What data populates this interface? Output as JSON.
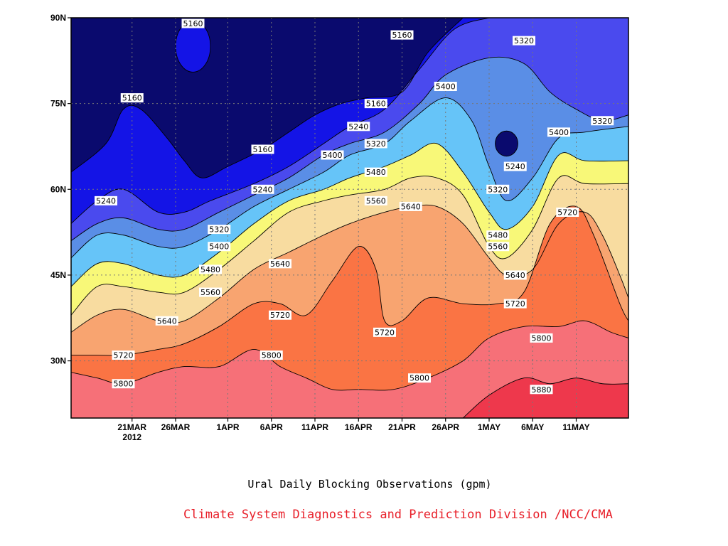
{
  "chart_data": {
    "type": "heatmap",
    "subtype": "filled-contour",
    "title": "Ural Daily Blocking Observations (gpm)",
    "credit": "Climate System Diagnostics and Prediction Division /NCC/CMA",
    "credit_color": "#e8202a",
    "xlabel": "",
    "ylabel": "",
    "x_axis": {
      "start": "2012-03-14",
      "end": "2012-05-17",
      "ticks": [
        {
          "date": "2012-03-21",
          "label": "21MAR",
          "sublabel": "2012"
        },
        {
          "date": "2012-03-26",
          "label": "26MAR"
        },
        {
          "date": "2012-04-01",
          "label": "1APR"
        },
        {
          "date": "2012-04-06",
          "label": "6APR"
        },
        {
          "date": "2012-04-11",
          "label": "11APR"
        },
        {
          "date": "2012-04-16",
          "label": "16APR"
        },
        {
          "date": "2012-04-21",
          "label": "21APR"
        },
        {
          "date": "2012-04-26",
          "label": "26APR"
        },
        {
          "date": "2012-05-01",
          "label": "1MAY"
        },
        {
          "date": "2012-05-06",
          "label": "6MAY"
        },
        {
          "date": "2012-05-11",
          "label": "11MAY"
        }
      ]
    },
    "y_axis": {
      "range": [
        20,
        90
      ],
      "unit": "degrees N",
      "ticks": [
        {
          "value": 30,
          "label": "30N"
        },
        {
          "value": 45,
          "label": "45N"
        },
        {
          "value": 60,
          "label": "60N"
        },
        {
          "value": 75,
          "label": "75N"
        },
        {
          "value": 90,
          "label": "90N"
        }
      ]
    },
    "grid": true,
    "grid_style": "dotted",
    "legend": "none",
    "contour_interval": 80,
    "levels": [
      {
        "value": 5160,
        "color": "#1414e6"
      },
      {
        "value": 5240,
        "color": "#4a4aee"
      },
      {
        "value": 5320,
        "color": "#5a8ee6"
      },
      {
        "value": 5400,
        "color": "#66c4f8"
      },
      {
        "value": 5480,
        "color": "#f8f878"
      },
      {
        "value": 5560,
        "color": "#f8dca0"
      },
      {
        "value": 5640,
        "color": "#f8a470"
      },
      {
        "value": 5720,
        "color": "#fa7444"
      },
      {
        "value": 5800,
        "color": "#f67078"
      },
      {
        "value": 5880,
        "color": "#ee384c"
      }
    ],
    "below_lowest_color": "#0a0a6e",
    "isolines": [
      {
        "value": 5160,
        "points": [
          [
            "2012-03-14",
            63
          ],
          [
            "2012-03-18",
            68
          ],
          [
            "2012-03-20",
            74
          ],
          [
            "2012-03-22",
            74
          ],
          [
            "2012-03-25",
            69
          ],
          [
            "2012-03-27",
            65
          ],
          [
            "2012-03-29",
            62
          ],
          [
            "2012-04-01",
            64
          ],
          [
            "2012-04-05",
            67
          ],
          [
            "2012-04-08",
            70
          ],
          [
            "2012-04-11",
            73
          ],
          [
            "2012-04-14",
            75
          ],
          [
            "2012-04-17",
            76
          ],
          [
            "2012-04-21",
            77
          ],
          [
            "2012-04-24",
            84
          ],
          [
            "2012-04-28",
            90
          ]
        ]
      },
      {
        "value": 5240,
        "points": [
          [
            "2012-03-14",
            54
          ],
          [
            "2012-03-17",
            58
          ],
          [
            "2012-03-20",
            60
          ],
          [
            "2012-03-24",
            56
          ],
          [
            "2012-03-27",
            56
          ],
          [
            "2012-03-30",
            58
          ],
          [
            "2012-04-04",
            61
          ],
          [
            "2012-04-08",
            64
          ],
          [
            "2012-04-12",
            68
          ],
          [
            "2012-04-15",
            71
          ],
          [
            "2012-04-19",
            74
          ],
          [
            "2012-04-23",
            81
          ],
          [
            "2012-04-27",
            88
          ],
          [
            "2012-05-01",
            90
          ]
        ]
      },
      {
        "value": 5320,
        "points": [
          [
            "2012-03-14",
            51
          ],
          [
            "2012-03-17",
            54
          ],
          [
            "2012-03-20",
            55
          ],
          [
            "2012-03-24",
            53
          ],
          [
            "2012-03-27",
            53
          ],
          [
            "2012-03-31",
            56
          ],
          [
            "2012-04-04",
            59
          ],
          [
            "2012-04-08",
            62
          ],
          [
            "2012-04-12",
            66
          ],
          [
            "2012-04-15",
            68
          ],
          [
            "2012-04-19",
            70
          ],
          [
            "2012-04-23",
            75
          ],
          [
            "2012-04-26",
            80
          ],
          [
            "2012-05-01",
            83
          ],
          [
            "2012-05-05",
            82
          ],
          [
            "2012-05-08",
            77
          ],
          [
            "2012-05-11",
            74
          ],
          [
            "2012-05-14",
            72
          ],
          [
            "2012-05-17",
            73
          ]
        ]
      },
      {
        "value": 5400,
        "points": [
          [
            "2012-03-14",
            48
          ],
          [
            "2012-03-17",
            52
          ],
          [
            "2012-03-20",
            52
          ],
          [
            "2012-03-24",
            50
          ],
          [
            "2012-03-27",
            50
          ],
          [
            "2012-03-31",
            53
          ],
          [
            "2012-04-04",
            57
          ],
          [
            "2012-04-08",
            60
          ],
          [
            "2012-04-12",
            63
          ],
          [
            "2012-04-15",
            66
          ],
          [
            "2012-04-19",
            68
          ],
          [
            "2012-04-22",
            72
          ],
          [
            "2012-04-26",
            76
          ],
          [
            "2012-04-29",
            72
          ],
          [
            "2012-05-01",
            64
          ],
          [
            "2012-05-03",
            58
          ],
          [
            "2012-05-06",
            62
          ],
          [
            "2012-05-09",
            69
          ],
          [
            "2012-05-12",
            70
          ],
          [
            "2012-05-17",
            71
          ]
        ]
      },
      {
        "value": 5480,
        "points": [
          [
            "2012-03-14",
            43
          ],
          [
            "2012-03-17",
            47
          ],
          [
            "2012-03-20",
            47
          ],
          [
            "2012-03-24",
            45
          ],
          [
            "2012-03-27",
            45
          ],
          [
            "2012-03-31",
            49
          ],
          [
            "2012-04-04",
            54
          ],
          [
            "2012-04-08",
            58
          ],
          [
            "2012-04-12",
            60
          ],
          [
            "2012-04-15",
            62
          ],
          [
            "2012-04-19",
            64
          ],
          [
            "2012-04-22",
            66
          ],
          [
            "2012-04-25",
            68
          ],
          [
            "2012-04-28",
            63
          ],
          [
            "2012-05-01",
            56
          ],
          [
            "2012-05-03",
            53
          ],
          [
            "2012-05-06",
            57
          ],
          [
            "2012-05-09",
            66
          ],
          [
            "2012-05-12",
            65
          ],
          [
            "2012-05-17",
            65
          ]
        ]
      },
      {
        "value": 5560,
        "points": [
          [
            "2012-03-14",
            38
          ],
          [
            "2012-03-17",
            43
          ],
          [
            "2012-03-20",
            43
          ],
          [
            "2012-03-24",
            42
          ],
          [
            "2012-03-27",
            42
          ],
          [
            "2012-03-31",
            46
          ],
          [
            "2012-04-04",
            51
          ],
          [
            "2012-04-08",
            56
          ],
          [
            "2012-04-12",
            58
          ],
          [
            "2012-04-15",
            59
          ],
          [
            "2012-04-19",
            60
          ],
          [
            "2012-04-22",
            62
          ],
          [
            "2012-04-25",
            62
          ],
          [
            "2012-04-28",
            59
          ],
          [
            "2012-05-01",
            50
          ],
          [
            "2012-05-03",
            48
          ],
          [
            "2012-05-06",
            53
          ],
          [
            "2012-05-09",
            62
          ],
          [
            "2012-05-12",
            61
          ],
          [
            "2012-05-17",
            61
          ]
        ]
      },
      {
        "value": 5640,
        "points": [
          [
            "2012-03-14",
            35
          ],
          [
            "2012-03-17",
            38
          ],
          [
            "2012-03-20",
            39
          ],
          [
            "2012-03-24",
            37
          ],
          [
            "2012-03-27",
            37
          ],
          [
            "2012-03-31",
            41
          ],
          [
            "2012-04-04",
            46
          ],
          [
            "2012-04-08",
            49
          ],
          [
            "2012-04-12",
            52
          ],
          [
            "2012-04-15",
            54
          ],
          [
            "2012-04-19",
            56
          ],
          [
            "2012-04-22",
            57
          ],
          [
            "2012-04-25",
            57
          ],
          [
            "2012-04-28",
            54
          ],
          [
            "2012-05-01",
            48
          ],
          [
            "2012-05-03",
            45
          ],
          [
            "2012-05-06",
            46
          ],
          [
            "2012-05-09",
            54
          ],
          [
            "2012-05-12",
            56
          ],
          [
            "2012-05-14",
            52
          ],
          [
            "2012-05-16",
            45
          ],
          [
            "2012-05-17",
            41
          ]
        ]
      },
      {
        "value": 5720,
        "points": [
          [
            "2012-03-14",
            31
          ],
          [
            "2012-03-17",
            31
          ],
          [
            "2012-03-20",
            31
          ],
          [
            "2012-03-24",
            32
          ],
          [
            "2012-03-27",
            33
          ],
          [
            "2012-03-31",
            36
          ],
          [
            "2012-04-04",
            40
          ],
          [
            "2012-04-07",
            40
          ],
          [
            "2012-04-10",
            38
          ],
          [
            "2012-04-13",
            44
          ],
          [
            "2012-04-16",
            50
          ],
          [
            "2012-04-18",
            46
          ],
          [
            "2012-04-19",
            37
          ],
          [
            "2012-04-21",
            37
          ],
          [
            "2012-04-24",
            41
          ],
          [
            "2012-04-28",
            40
          ],
          [
            "2012-05-02",
            40
          ],
          [
            "2012-05-05",
            42
          ],
          [
            "2012-05-08",
            54
          ],
          [
            "2012-05-11",
            57
          ],
          [
            "2012-05-13",
            52
          ],
          [
            "2012-05-16",
            40
          ],
          [
            "2012-05-17",
            37
          ]
        ]
      },
      {
        "value": 5800,
        "points": [
          [
            "2012-03-14",
            28
          ],
          [
            "2012-03-17",
            27
          ],
          [
            "2012-03-20",
            26
          ],
          [
            "2012-03-24",
            28
          ],
          [
            "2012-03-27",
            29
          ],
          [
            "2012-03-31",
            29
          ],
          [
            "2012-04-04",
            32
          ],
          [
            "2012-04-07",
            29
          ],
          [
            "2012-04-10",
            27
          ],
          [
            "2012-04-13",
            25
          ],
          [
            "2012-04-16",
            25
          ],
          [
            "2012-04-20",
            25
          ],
          [
            "2012-04-24",
            27
          ],
          [
            "2012-04-28",
            30
          ],
          [
            "2012-05-01",
            34
          ],
          [
            "2012-05-05",
            36
          ],
          [
            "2012-05-09",
            36
          ],
          [
            "2012-05-12",
            37
          ],
          [
            "2012-05-15",
            35
          ],
          [
            "2012-05-17",
            34
          ]
        ]
      },
      {
        "value": 5880,
        "points": [
          [
            "2012-04-28",
            20
          ],
          [
            "2012-05-01",
            24
          ],
          [
            "2012-05-05",
            27
          ],
          [
            "2012-05-08",
            26
          ],
          [
            "2012-05-11",
            27
          ],
          [
            "2012-05-14",
            26
          ],
          [
            "2012-05-17",
            26
          ]
        ]
      }
    ],
    "closed_contours": [
      {
        "value": 5240,
        "center": [
          "2012-05-03",
          68
        ],
        "radius_days": 1.3,
        "radius_lat": 2.2
      },
      {
        "value": 5160,
        "center": [
          "2012-03-28",
          85
        ],
        "radius_days": 2.0,
        "radius_lat": 4.5
      }
    ],
    "contour_labels": [
      {
        "label": "5160",
        "date": "2012-03-28",
        "lat": 89
      },
      {
        "label": "5160",
        "date": "2012-04-21",
        "lat": 87
      },
      {
        "label": "5320",
        "date": "2012-05-05",
        "lat": 86
      },
      {
        "label": "5160",
        "date": "2012-03-21",
        "lat": 76
      },
      {
        "label": "5160",
        "date": "2012-04-18",
        "lat": 75
      },
      {
        "label": "5400",
        "date": "2012-04-26",
        "lat": 78
      },
      {
        "label": "5240",
        "date": "2012-04-16",
        "lat": 71
      },
      {
        "label": "5320",
        "date": "2012-04-18",
        "lat": 68
      },
      {
        "label": "5160",
        "date": "2012-04-05",
        "lat": 67
      },
      {
        "label": "5400",
        "date": "2012-04-13",
        "lat": 66
      },
      {
        "label": "5400",
        "date": "2012-05-09",
        "lat": 70
      },
      {
        "label": "5320",
        "date": "2012-05-14",
        "lat": 72
      },
      {
        "label": "5240",
        "date": "2012-05-04",
        "lat": 64
      },
      {
        "label": "5480",
        "date": "2012-04-18",
        "lat": 63
      },
      {
        "label": "5560",
        "date": "2012-04-18",
        "lat": 58
      },
      {
        "label": "5240",
        "date": "2012-04-05",
        "lat": 60
      },
      {
        "label": "5240",
        "date": "2012-03-18",
        "lat": 58
      },
      {
        "label": "5320",
        "date": "2012-05-02",
        "lat": 60
      },
      {
        "label": "5640",
        "date": "2012-04-22",
        "lat": 57
      },
      {
        "label": "5720",
        "date": "2012-05-10",
        "lat": 56
      },
      {
        "label": "5320",
        "date": "2012-03-31",
        "lat": 53
      },
      {
        "label": "5480",
        "date": "2012-05-02",
        "lat": 52
      },
      {
        "label": "5400",
        "date": "2012-03-31",
        "lat": 50
      },
      {
        "label": "5560",
        "date": "2012-05-02",
        "lat": 50
      },
      {
        "label": "5640",
        "date": "2012-04-07",
        "lat": 47
      },
      {
        "label": "5480",
        "date": "2012-03-30",
        "lat": 46
      },
      {
        "label": "5640",
        "date": "2012-05-04",
        "lat": 45
      },
      {
        "label": "5560",
        "date": "2012-03-30",
        "lat": 42
      },
      {
        "label": "5720",
        "date": "2012-05-04",
        "lat": 40
      },
      {
        "label": "5720",
        "date": "2012-04-07",
        "lat": 38
      },
      {
        "label": "5640",
        "date": "2012-03-25",
        "lat": 37
      },
      {
        "label": "5720",
        "date": "2012-04-19",
        "lat": 35
      },
      {
        "label": "5800",
        "date": "2012-05-07",
        "lat": 34
      },
      {
        "label": "5720",
        "date": "2012-03-20",
        "lat": 31
      },
      {
        "label": "5800",
        "date": "2012-04-06",
        "lat": 31
      },
      {
        "label": "5800",
        "date": "2012-04-23",
        "lat": 27
      },
      {
        "label": "5800",
        "date": "2012-03-20",
        "lat": 26
      },
      {
        "label": "5880",
        "date": "2012-05-07",
        "lat": 25
      }
    ]
  }
}
